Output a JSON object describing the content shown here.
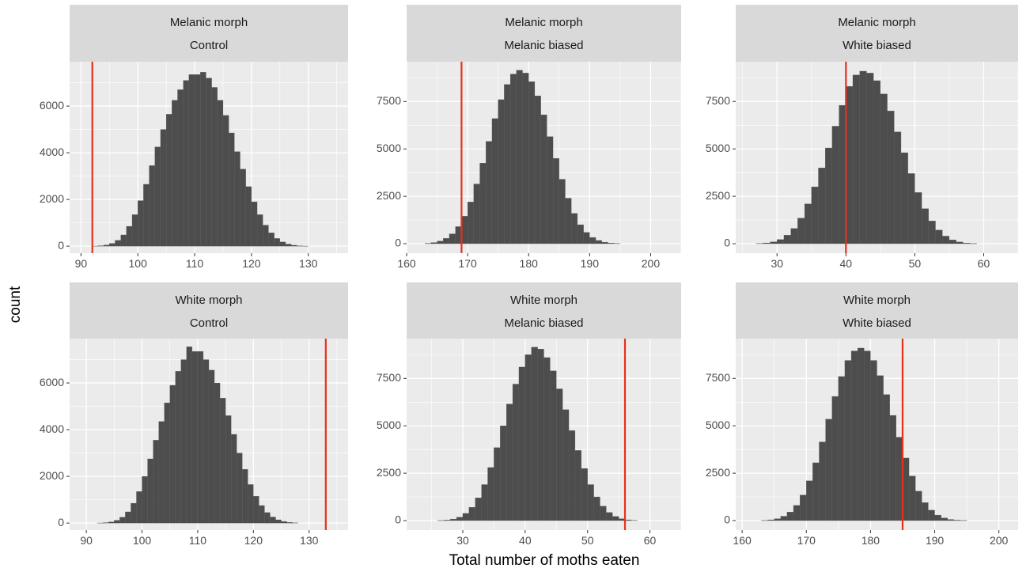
{
  "x_axis_title": "Total number of moths eaten",
  "y_axis_title": "count",
  "colors": {
    "panel_bg": "#ebebeb",
    "grid": "#ffffff",
    "strip_bg": "#d9d9d9",
    "bar": "#4d4d4d",
    "observed_line": "#e8301c"
  },
  "chart_data": [
    {
      "type": "bar",
      "strip": [
        "Melanic morph",
        "Control"
      ],
      "xlim": [
        88,
        137
      ],
      "ylim": [
        -300,
        7900
      ],
      "x_ticks": [
        90,
        100,
        110,
        120,
        130
      ],
      "y_ticks": [
        0,
        2000,
        4000,
        6000
      ],
      "bin_start": 92,
      "bin_width": 1,
      "values": [
        5,
        20,
        50,
        120,
        250,
        480,
        850,
        1350,
        1950,
        2650,
        3450,
        4250,
        5000,
        5650,
        6250,
        6700,
        7100,
        7350,
        7350,
        7450,
        7200,
        6800,
        6250,
        5600,
        4850,
        4050,
        3300,
        2550,
        1900,
        1350,
        900,
        570,
        330,
        180,
        90,
        40,
        15,
        5
      ],
      "observed": 92
    },
    {
      "type": "bar",
      "strip": [
        "Melanic morph",
        "Melanic biased"
      ],
      "xlim": [
        160,
        205
      ],
      "ylim": [
        -500,
        9600
      ],
      "x_ticks": [
        160,
        170,
        180,
        190,
        200
      ],
      "y_ticks": [
        0,
        2500,
        5000,
        7500
      ],
      "bin_start": 163,
      "bin_width": 1,
      "values": [
        20,
        60,
        140,
        280,
        520,
        900,
        1450,
        2200,
        3150,
        4250,
        5400,
        6600,
        7600,
        8400,
        8950,
        9150,
        9000,
        8550,
        7800,
        6800,
        5650,
        4500,
        3400,
        2400,
        1600,
        1000,
        600,
        330,
        170,
        80,
        35,
        15
      ],
      "observed": 169
    },
    {
      "type": "bar",
      "strip": [
        "Melanic morph",
        "White biased"
      ],
      "xlim": [
        24,
        65
      ],
      "ylim": [
        -500,
        9600
      ],
      "x_ticks": [
        30,
        40,
        50,
        60
      ],
      "y_ticks": [
        0,
        2500,
        5000,
        7500
      ],
      "bin_start": 27,
      "bin_width": 1,
      "values": [
        15,
        40,
        100,
        220,
        450,
        800,
        1350,
        2100,
        3000,
        4000,
        5050,
        6200,
        7300,
        8300,
        8900,
        9100,
        9000,
        8600,
        7900,
        7000,
        5900,
        4800,
        3700,
        2700,
        1850,
        1200,
        720,
        400,
        200,
        90,
        35,
        10
      ],
      "observed": 40
    },
    {
      "type": "bar",
      "strip": [
        "White morph",
        "Control"
      ],
      "xlim": [
        87,
        137
      ],
      "ylim": [
        -300,
        7900
      ],
      "x_ticks": [
        90,
        100,
        110,
        120,
        130
      ],
      "y_ticks": [
        0,
        2000,
        4000,
        6000
      ],
      "bin_start": 92,
      "bin_width": 1,
      "values": [
        5,
        20,
        50,
        120,
        250,
        480,
        850,
        1350,
        2000,
        2750,
        3550,
        4350,
        5150,
        5900,
        6500,
        7000,
        7550,
        7350,
        7350,
        7000,
        6550,
        6000,
        5350,
        4600,
        3800,
        3000,
        2300,
        1650,
        1150,
        750,
        450,
        260,
        140,
        70,
        30,
        10
      ],
      "observed": 133
    },
    {
      "type": "bar",
      "strip": [
        "White morph",
        "Melanic biased"
      ],
      "xlim": [
        21,
        65
      ],
      "ylim": [
        -500,
        9600
      ],
      "x_ticks": [
        30,
        40,
        50,
        60
      ],
      "y_ticks": [
        0,
        2500,
        5000,
        7500
      ],
      "bin_start": 26,
      "bin_width": 1,
      "values": [
        10,
        30,
        80,
        180,
        380,
        700,
        1200,
        1900,
        2800,
        3850,
        5000,
        6150,
        7200,
        8100,
        8750,
        9150,
        9050,
        8600,
        7900,
        6950,
        5850,
        4750,
        3700,
        2750,
        1900,
        1250,
        760,
        430,
        220,
        100,
        40,
        15
      ],
      "observed": 56
    },
    {
      "type": "bar",
      "strip": [
        "White morph",
        "White biased"
      ],
      "xlim": [
        159,
        203
      ],
      "ylim": [
        -500,
        9600
      ],
      "x_ticks": [
        160,
        170,
        180,
        190,
        200
      ],
      "y_ticks": [
        0,
        2500,
        5000,
        7500
      ],
      "bin_start": 163,
      "bin_width": 1,
      "values": [
        10,
        40,
        100,
        230,
        450,
        800,
        1350,
        2100,
        3050,
        4150,
        5350,
        6550,
        7600,
        8450,
        8950,
        9100,
        8950,
        8450,
        7650,
        6650,
        5550,
        4400,
        3300,
        2350,
        1550,
        950,
        550,
        290,
        140,
        60,
        25,
        10
      ],
      "observed": 185
    }
  ]
}
